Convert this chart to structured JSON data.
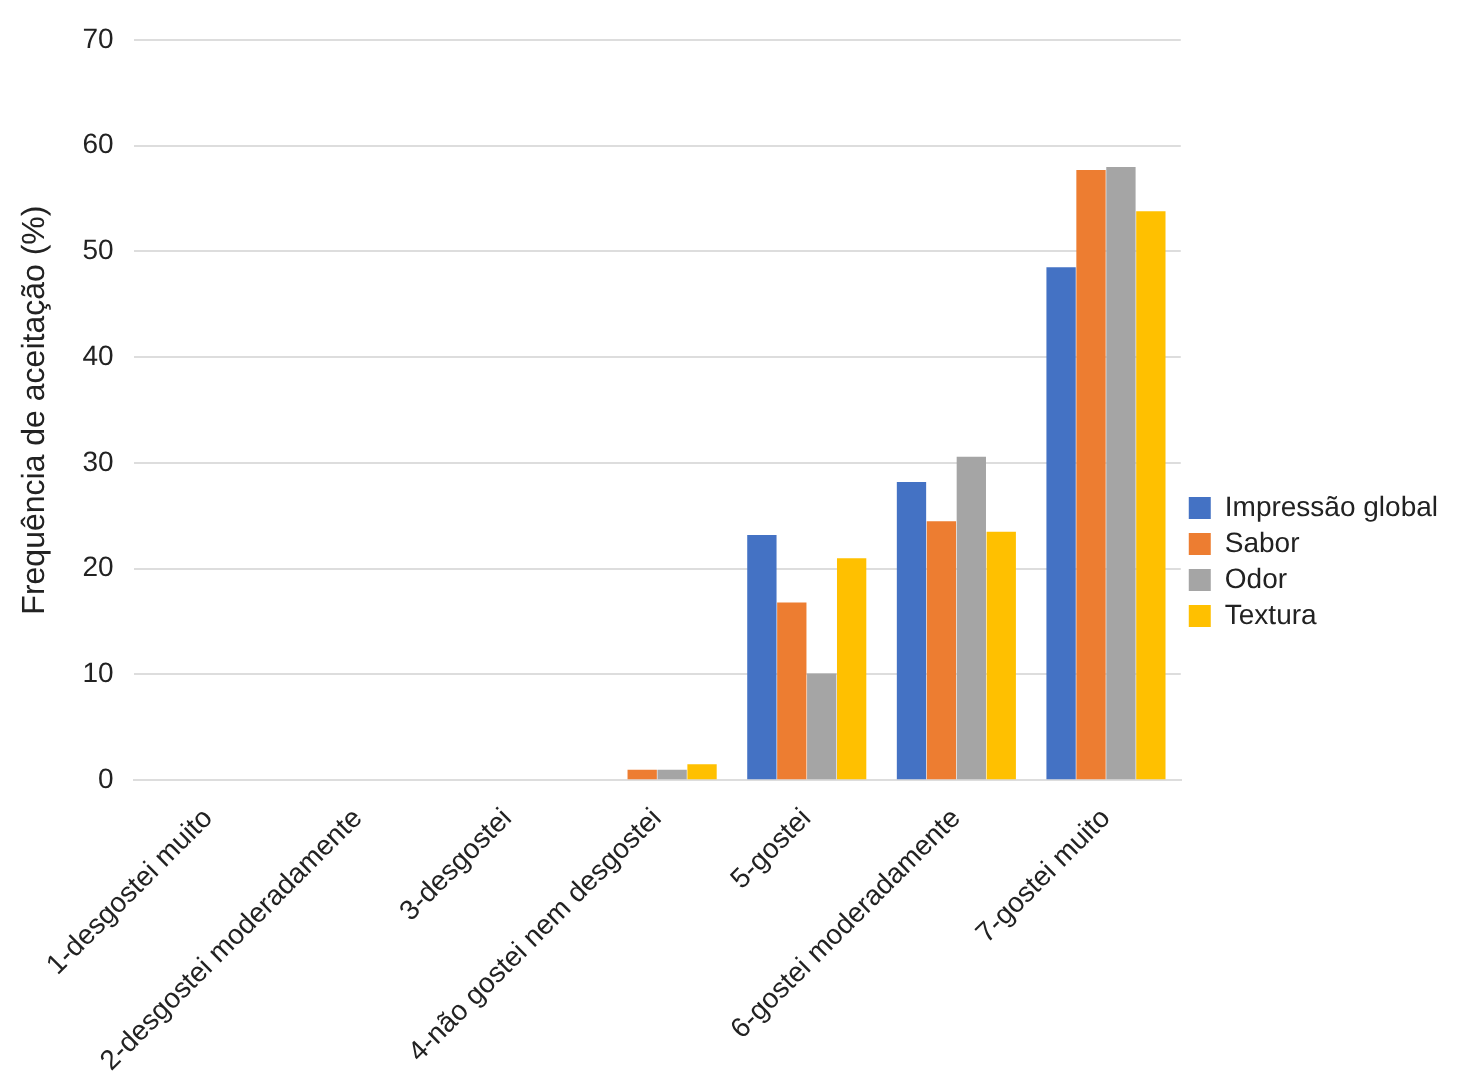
{
  "chart_data": {
    "type": "bar",
    "ylabel": "Frequência de aceitação (%)",
    "categories": [
      "1-desgostei muito",
      "2-desgostei moderadamente",
      "3-desgostei",
      "4-não gostei nem desgostei",
      "5-gostei",
      "6-gostei moderadamente",
      "7-gostei muito"
    ],
    "series": [
      {
        "name": "Impressão global",
        "color": "#4472c4",
        "values": [
          0,
          0,
          0,
          0,
          23.2,
          28.2,
          48.5
        ]
      },
      {
        "name": "Sabor",
        "color": "#ed7d31",
        "values": [
          0,
          0,
          0,
          1.0,
          16.8,
          24.5,
          57.7
        ]
      },
      {
        "name": "Odor",
        "color": "#a5a5a5",
        "values": [
          0,
          0,
          0,
          1.0,
          10.1,
          30.6,
          58.0
        ]
      },
      {
        "name": "Textura",
        "color": "#ffc000",
        "values": [
          0,
          0,
          0,
          1.5,
          21.0,
          23.5,
          53.8
        ]
      }
    ],
    "ylim": [
      0,
      70
    ],
    "yticks": [
      0,
      10,
      20,
      30,
      40,
      50,
      60,
      70
    ],
    "grid": "y",
    "legend": "right"
  }
}
